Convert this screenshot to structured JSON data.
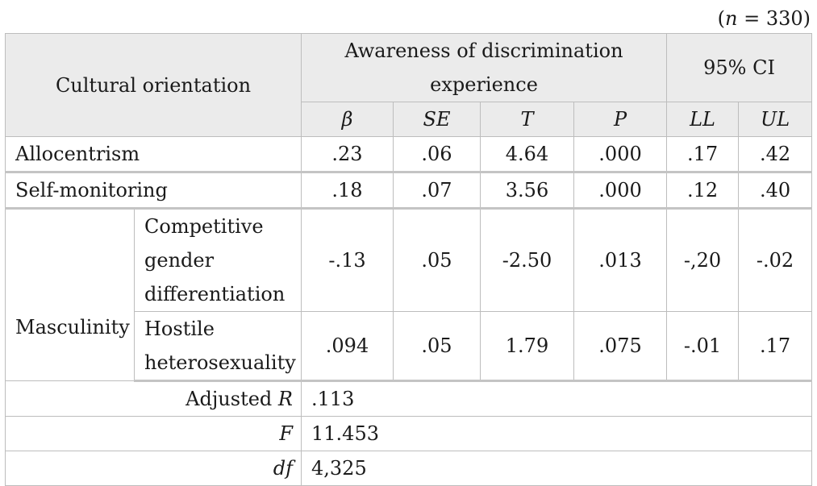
{
  "note": {
    "n_label": "n",
    "n_rest": " = 330)",
    "open": "("
  },
  "header": {
    "cultural_orientation": "Cultural orientation",
    "awareness_line1": "Awareness of discrimination",
    "awareness_line2": "experience",
    "ci": "95% CI",
    "cols": [
      "β",
      "SE",
      "T",
      "P",
      "LL",
      "UL"
    ]
  },
  "rows": {
    "allocentrism": {
      "label": "Allocentrism",
      "values": [
        ".23",
        ".06",
        "4.64",
        ".000",
        ".17",
        ".42"
      ]
    },
    "self_monitoring": {
      "label": "Self-monitoring",
      "values": [
        ".18",
        ".07",
        "3.56",
        ".000",
        ".12",
        ".40"
      ]
    },
    "masculinity": {
      "label": "Masculinity",
      "competitive": {
        "line1": "Competitive",
        "line2": "gender",
        "line3": "differentiation",
        "values": [
          "-.13",
          ".05",
          "-2.50",
          ".013",
          "-,20",
          "-.02"
        ]
      },
      "hostile": {
        "line1": "Hostile",
        "line2": "heterosexuality",
        "values": [
          ".094",
          ".05",
          "1.79",
          ".075",
          "-.01",
          ".17"
        ]
      }
    }
  },
  "stats": {
    "adjusted_r_label": "Adjusted ",
    "adjusted_r_sym": "R",
    "adjusted_r_value": ".113",
    "f_label": "F",
    "f_value": "11.453",
    "df_label": "df",
    "df_value": "4,325"
  }
}
